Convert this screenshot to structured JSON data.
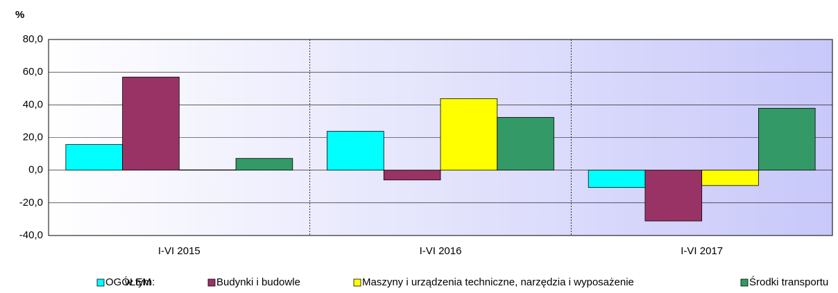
{
  "chart_data": {
    "type": "bar",
    "y_label": "%",
    "categories": [
      "I-VI 2015",
      "I-VI 2016",
      "I-VI 2017"
    ],
    "series": [
      {
        "name": "OGÓŁEM",
        "color": "#00ffff",
        "values": [
          15.7,
          23.8,
          -10.6
        ]
      },
      {
        "name": "Budynki i budowle",
        "color": "#993366",
        "values": [
          57.0,
          -6.0,
          -31.1
        ]
      },
      {
        "name": "Maszyny i urządzenia techniczne, narzędzia i wyposażenie",
        "color": "#ffff00",
        "values": [
          0.2,
          43.8,
          -9.4
        ]
      },
      {
        "name": "Środki transportu",
        "color": "#339966",
        "values": [
          7.2,
          32.3,
          37.9
        ]
      }
    ],
    "legend_note": "w tym:",
    "ylim": [
      -40,
      80
    ],
    "yticks": [
      {
        "value": -40,
        "label": "-40,0"
      },
      {
        "value": -20,
        "label": "-20,0"
      },
      {
        "value": 0,
        "label": "0,0"
      },
      {
        "value": 20,
        "label": "20,0"
      },
      {
        "value": 40,
        "label": "40,0"
      },
      {
        "value": 60,
        "label": "60,0"
      },
      {
        "value": 80,
        "label": "80,0"
      }
    ],
    "grid": true
  }
}
